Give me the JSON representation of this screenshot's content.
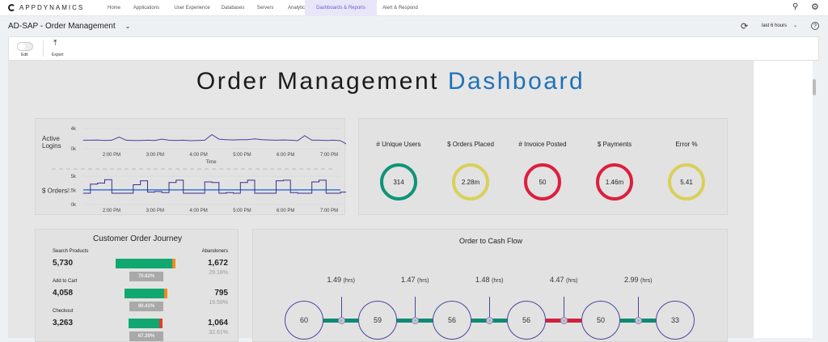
{
  "nav": {
    "brand": "APPDYNAMICS",
    "items": [
      "Home",
      "Applications",
      "User Experience",
      "Databases",
      "Servers",
      "Analytics",
      "Dashboards & Reports",
      "Alert & Respond"
    ],
    "active": "Dashboards & Reports"
  },
  "header": {
    "title": "AD-SAP - Order Management",
    "time_range": "last 6 hours"
  },
  "toolbar": {
    "edit_label": "Edit",
    "export_label": "Export"
  },
  "dashboard": {
    "title_part1": "Order Management",
    "title_part2": "Dashboard"
  },
  "kpis": [
    {
      "label": "# Unique Users",
      "value": "314",
      "color": "#0e9477"
    },
    {
      "label": "$ Orders Placed",
      "value": "2.28m",
      "color": "#d9d05a"
    },
    {
      "label": "# Invoice Posted",
      "value": "50",
      "color": "#dc1f3f"
    },
    {
      "label": "$ Payments",
      "value": "1.46m",
      "color": "#dc1f3f"
    },
    {
      "label": "Error %",
      "value": "5.41",
      "color": "#d9d05a"
    }
  ],
  "journey": {
    "title": "Customer Order Journey",
    "abandoners_label": "Abandoners",
    "steps": [
      {
        "label": "Search Products",
        "value": "5,730",
        "abandoners": "1,672",
        "abandon_pct": "29.18%",
        "conversion": "70.82%",
        "bar_frac": 1.0,
        "tail_color": "#f08a24"
      },
      {
        "label": "Add to Cart",
        "value": "4,058",
        "abandoners": "795",
        "abandon_pct": "19.59%",
        "conversion": "80.41%",
        "bar_frac": 0.71,
        "tail_color": "#f08a24"
      },
      {
        "label": "Checkout",
        "value": "3,263",
        "abandoners": "1,064",
        "abandon_pct": "32.61%",
        "conversion": "67.39%",
        "bar_frac": 0.57,
        "tail_color": "#e0402a"
      }
    ]
  },
  "cash_flow": {
    "title": "Order to Cash Flow",
    "nodes": [
      "60",
      "59",
      "56",
      "56",
      "50",
      "33"
    ],
    "links": [
      {
        "value": "1.49",
        "unit": "(hrs)",
        "color": "#0e8a72"
      },
      {
        "value": "1.47",
        "unit": "(hrs)",
        "color": "#0e8a72"
      },
      {
        "value": "1.48",
        "unit": "(hrs)",
        "color": "#0e8a72"
      },
      {
        "value": "4.47",
        "unit": "(hrs)",
        "color": "#d0223c"
      },
      {
        "value": "2.99",
        "unit": "(hrs)",
        "color": "#0e8a72"
      }
    ]
  },
  "chart_data": [
    {
      "type": "line",
      "ylabel": "Active Logins",
      "xlabel": "Time",
      "ylim": [
        0,
        4000
      ],
      "yticks": [
        "4k",
        "0k"
      ],
      "xticks": [
        "2:00 PM",
        "3:00 PM",
        "4:00 PM",
        "5:00 PM",
        "6:00 PM",
        "7:00 PM"
      ],
      "x_start": "1:20 PM",
      "x_step_minutes": 10,
      "color": "#4a3f9e",
      "series": [
        {
          "values": [
            1700,
            1700,
            1720,
            1650,
            1700,
            2300,
            1700,
            1650,
            1650,
            1700,
            1650,
            1900,
            1700,
            1650,
            1700,
            1600,
            1650,
            1700,
            2800,
            1900,
            1800,
            1750,
            1800,
            1800,
            1950,
            1800,
            1750,
            1700,
            1750,
            1700,
            1600,
            2600,
            1700,
            1700,
            1650,
            1700,
            1600,
            800
          ]
        }
      ]
    },
    {
      "type": "line",
      "ylabel": "$ Orders",
      "ylim": [
        0,
        5000
      ],
      "yticks": [
        "5k",
        "2.5k",
        "0k"
      ],
      "xticks": [
        "2:00 PM",
        "3:00 PM",
        "4:00 PM",
        "5:00 PM",
        "6:00 PM",
        "7:00 PM"
      ],
      "x_start": "1:20 PM",
      "x_step_minutes": 10,
      "color": "#3a2f8e",
      "baseline": {
        "value": 2600,
        "color": "#2f6fd6"
      },
      "series": [
        {
          "values": [
            2000,
            3600,
            3800,
            4400,
            2000,
            2000,
            2000,
            3500,
            4200,
            2200,
            2300,
            2100,
            3900,
            4300,
            2000,
            2000,
            2000,
            4000,
            3900,
            2000,
            2100,
            2000,
            3900,
            4300,
            2000,
            2000,
            2000,
            4200,
            4300,
            2100,
            2000,
            2000,
            4000,
            4300,
            2000,
            2000,
            2200,
            2000
          ]
        }
      ]
    }
  ]
}
